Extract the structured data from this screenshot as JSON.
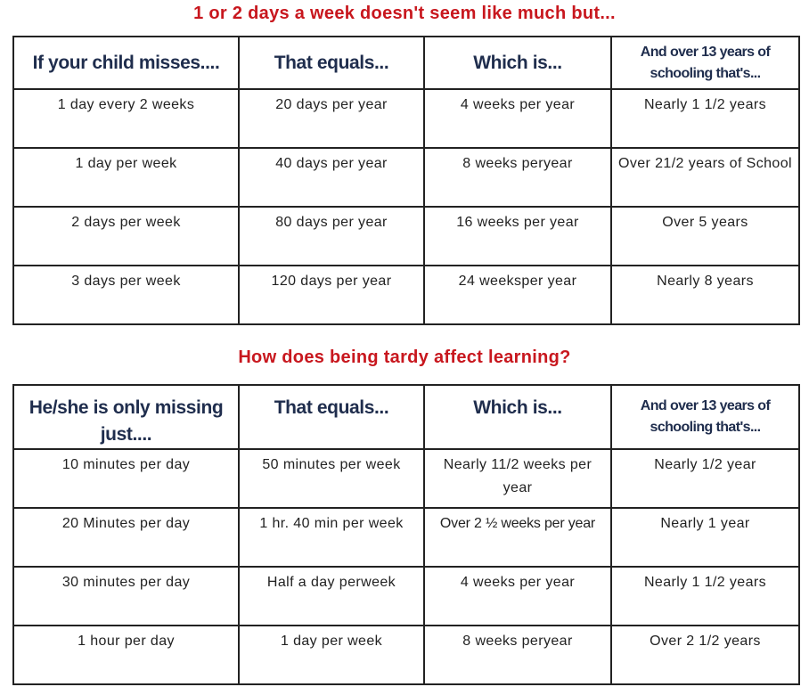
{
  "section1": {
    "title": "1 or 2 days a week doesn't seem like much but...",
    "headers": [
      "If your child misses....",
      "That equals...",
      "Which is...",
      "And over 13 years of schooling that's..."
    ],
    "rows": [
      [
        "1 day every 2 weeks",
        "20 days per year",
        "4 weeks per year",
        "Nearly 1 1/2 years"
      ],
      [
        "1 day per week",
        "40 days per year",
        "8 weeks peryear",
        "Over 21/2 years of School"
      ],
      [
        "2 days per week",
        "80 days per year",
        "16 weeks per year",
        "Over 5 years"
      ],
      [
        "3 days per week",
        "120 days per year",
        "24 weeksper year",
        "Nearly 8 years"
      ]
    ]
  },
  "section2": {
    "title": "How does being tardy affect learning?",
    "headers": [
      "He/she is only missing just....",
      "That equals...",
      "Which is...",
      "And over 13 years of schooling that's..."
    ],
    "rows": [
      [
        "10 minutes per day",
        "50 minutes per week",
        "Nearly 11/2 weeks per year",
        "Nearly 1/2 year"
      ],
      [
        "20 Minutes per day",
        "1 hr. 40 min per week",
        "Over 2 ½ weeks per year",
        "Nearly 1 year"
      ],
      [
        "30 minutes per day",
        "Half a day perweek",
        "4 weeks per year",
        "Nearly 1 1/2 years"
      ],
      [
        "1 hour per day",
        "1 day per week",
        "8 weeks peryear",
        "Over 2 1/2 years"
      ]
    ]
  },
  "colors": {
    "title": "#c8171e",
    "header_text": "#1f2d4d",
    "border": "#222222"
  }
}
